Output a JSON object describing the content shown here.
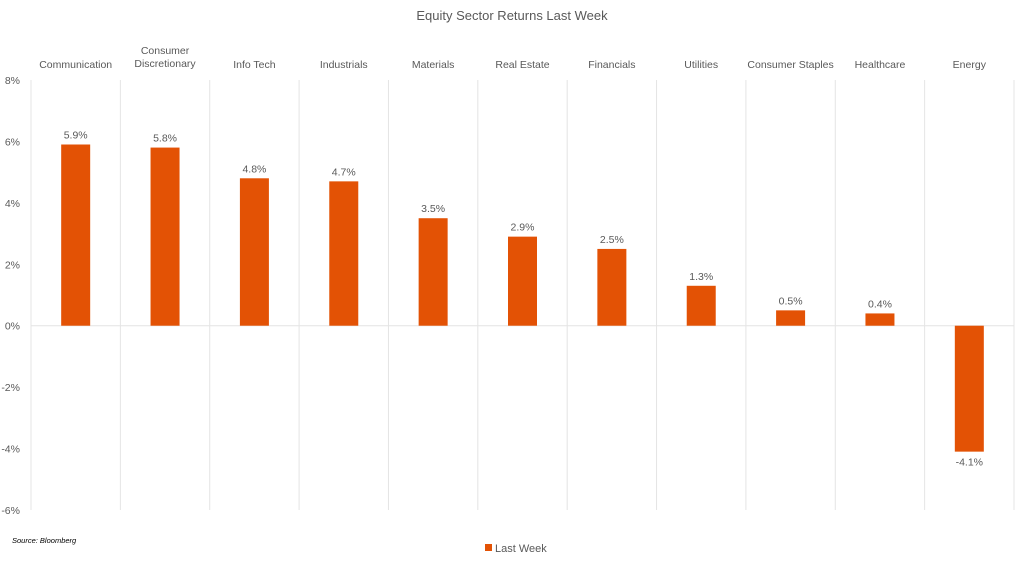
{
  "chart_data": {
    "type": "bar",
    "title": "Equity Sector Returns Last Week",
    "categories": [
      "Communication",
      "Consumer Discretionary",
      "Info Tech",
      "Industrials",
      "Materials",
      "Real Estate",
      "Financials",
      "Utilities",
      "Consumer Staples",
      "Healthcare",
      "Energy"
    ],
    "series": [
      {
        "name": "Last Week",
        "values": [
          5.9,
          5.8,
          4.8,
          4.7,
          3.5,
          2.9,
          2.5,
          1.3,
          0.5,
          0.4,
          -4.1
        ],
        "color": "#E35205"
      }
    ],
    "data_labels": [
      "5.9%",
      "5.8%",
      "4.8%",
      "4.7%",
      "3.5%",
      "2.9%",
      "2.5%",
      "1.3%",
      "0.5%",
      "0.4%",
      "-4.1%"
    ],
    "yticks": [
      8,
      6,
      4,
      2,
      0,
      -2,
      -4,
      -6
    ],
    "ytick_labels": [
      "8%",
      "6%",
      "4%",
      "2%",
      "0%",
      "-2%",
      "-4%",
      "-6%"
    ],
    "ylim": [
      -6,
      8
    ],
    "xlabel": "",
    "ylabel": "",
    "legend": "bottom",
    "source": "Source: Bloomberg"
  }
}
